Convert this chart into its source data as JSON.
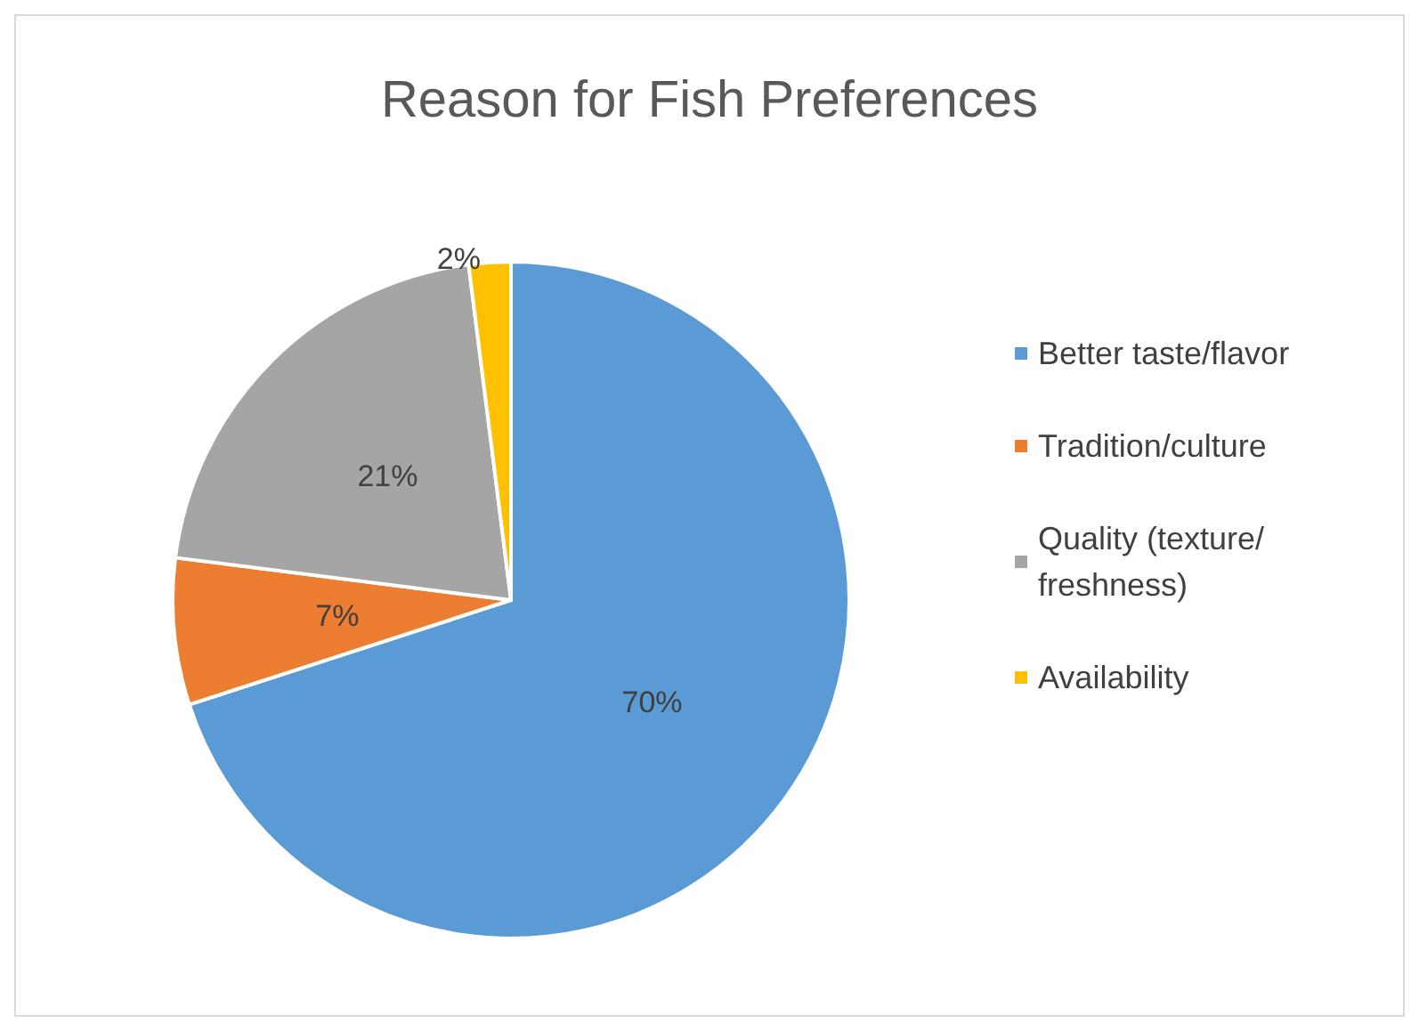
{
  "chart_data": {
    "type": "pie",
    "title": "Reason for Fish Preferences",
    "categories": [
      "Better taste/flavor",
      "Tradition/culture",
      "Quality (texture/freshness)",
      "Availability"
    ],
    "values": [
      70,
      7,
      21,
      2
    ],
    "colors": [
      "#5b9bd5",
      "#ed7d31",
      "#a5a5a5",
      "#ffc000"
    ],
    "value_labels": [
      "70%",
      "7%",
      "21%",
      "2%"
    ],
    "legend": "right"
  }
}
